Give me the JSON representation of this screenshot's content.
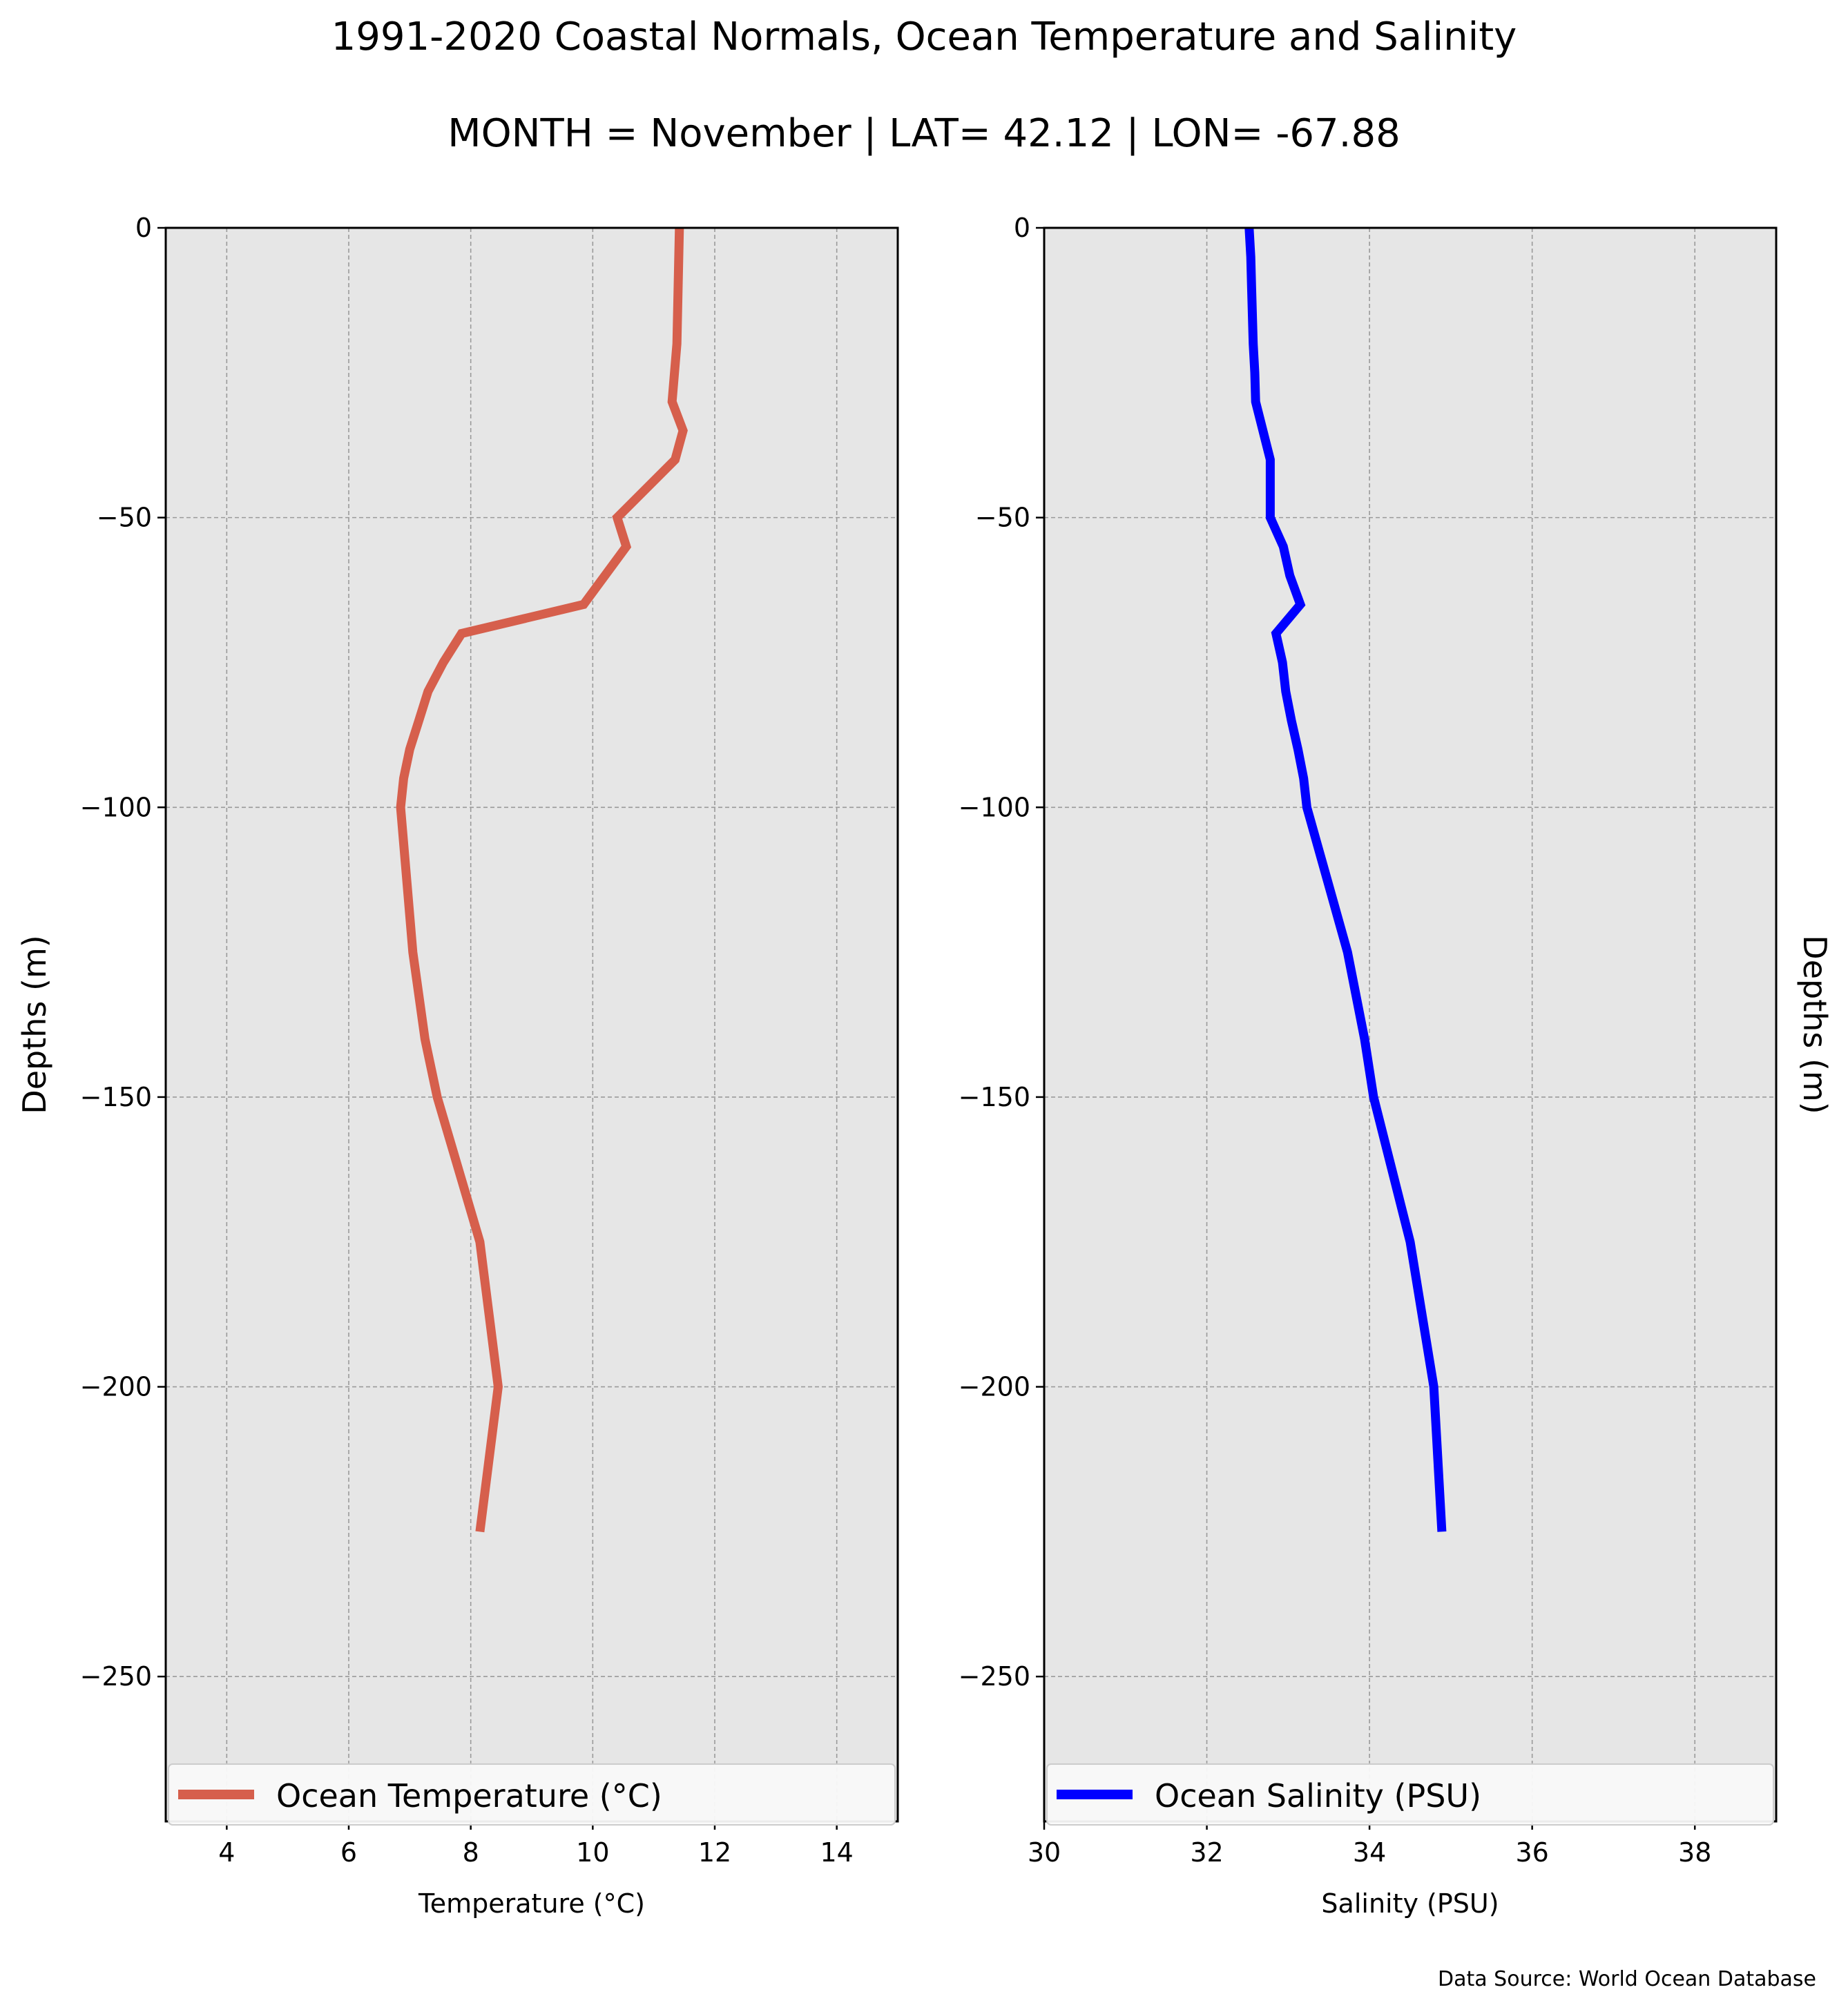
{
  "figure": {
    "title_line1": "1991-2020 Coastal Normals, Ocean Temperature and Salinity",
    "title_line2": "MONTH = November | LAT= 42.12 | LON= -67.88",
    "source_note": "Data Source: World Ocean Database"
  },
  "colors": {
    "panel_background": "#e6e6e6",
    "grid": "#9a9a9a",
    "temperature_line": "#d65f4c",
    "salinity_line": "#0000ff"
  },
  "chart_data": [
    {
      "type": "line",
      "orientation": "vertical-profile",
      "xlabel": "Temperature ($^\\circ$C)",
      "xlabel_display": "Temperature (°C)",
      "ylabel": "Depths (m)",
      "xlim": [
        3,
        15
      ],
      "ylim": [
        -275,
        0
      ],
      "xticks": [
        4,
        6,
        8,
        10,
        12,
        14
      ],
      "yticks": [
        0,
        -50,
        -100,
        -150,
        -200,
        -250
      ],
      "ytick_labels": [
        "0",
        "−50",
        "−100",
        "−150",
        "−200",
        "−250"
      ],
      "grid": true,
      "legend_placement": "lower-center",
      "series": [
        {
          "name": "Ocean Temperature (°C)",
          "color": "#d65f4c",
          "x": [
            11.42,
            11.4,
            11.38,
            11.34,
            11.3,
            11.3,
            11.48,
            11.35,
            10.4,
            10.55,
            9.85,
            7.85,
            7.55,
            7.3,
            7.15,
            7.0,
            6.9,
            6.85,
            7.05,
            7.25,
            7.45,
            8.15,
            8.45,
            8.15
          ],
          "y": [
            0,
            -10,
            -20,
            -25,
            -30,
            -30,
            -35,
            -40,
            -50,
            -55,
            -65,
            -70,
            -75,
            -80,
            -85,
            -90,
            -95,
            -100,
            -125,
            -140,
            -150,
            -175,
            -200,
            -225
          ]
        }
      ]
    },
    {
      "type": "line",
      "orientation": "vertical-profile",
      "xlabel": "Salinity (PSU)",
      "ylabel": "Depths (m)",
      "xlim": [
        30,
        39
      ],
      "ylim": [
        -275,
        0
      ],
      "xticks": [
        30,
        32,
        34,
        36,
        38
      ],
      "yticks": [
        0,
        -50,
        -100,
        -150,
        -200,
        -250
      ],
      "ytick_labels": [
        "0",
        "−50",
        "−100",
        "−150",
        "−200",
        "−250"
      ],
      "grid": true,
      "legend_placement": "lower-center",
      "series": [
        {
          "name": "Ocean Salinity (PSU)",
          "color": "#0000ff",
          "x": [
            32.52,
            32.54,
            32.55,
            32.57,
            32.59,
            32.6,
            32.78,
            32.78,
            32.94,
            33.02,
            33.15,
            32.85,
            32.93,
            32.97,
            33.04,
            33.12,
            33.19,
            33.23,
            33.53,
            33.73,
            33.94,
            34.05,
            34.5,
            34.79,
            34.89
          ],
          "y": [
            0,
            -5,
            -10,
            -20,
            -25,
            -30,
            -40,
            -50,
            -55,
            -60,
            -65,
            -70,
            -75,
            -80,
            -85,
            -90,
            -95,
            -100,
            -115,
            -125,
            -140,
            -150,
            -175,
            -200,
            -225
          ]
        }
      ]
    }
  ]
}
